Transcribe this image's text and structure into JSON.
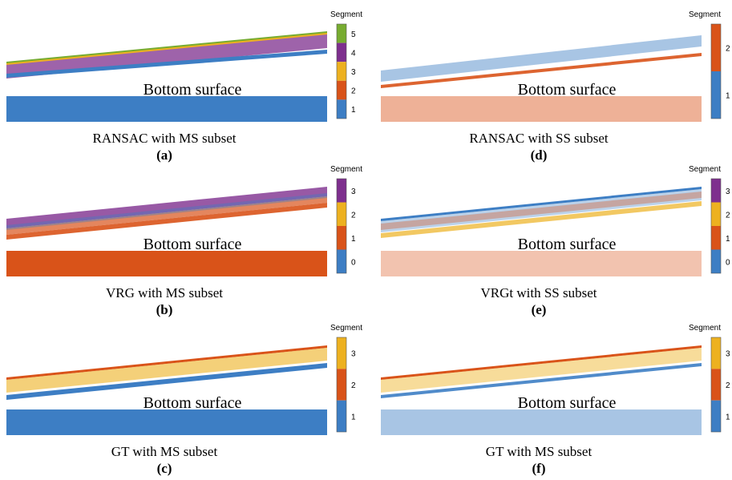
{
  "panels": [
    {
      "caption": "RANSAC with MS subset",
      "label": "(a)",
      "surface": "Bottom surface",
      "colorbar": {
        "title": "Segment",
        "segments": [
          {
            "label": "5",
            "color": "#77ac30"
          },
          {
            "label": "4",
            "color": "#7e2f8e"
          },
          {
            "label": "3",
            "color": "#edb120"
          },
          {
            "label": "2",
            "color": "#d95319"
          },
          {
            "label": "1",
            "color": "#3d7ec4"
          }
        ]
      }
    },
    {
      "caption": "VRG with MS subset",
      "label": "(b)",
      "surface": "Bottom surface",
      "colorbar": {
        "title": "Segment",
        "segments": [
          {
            "label": "3",
            "color": "#7e2f8e"
          },
          {
            "label": "2",
            "color": "#edb120"
          },
          {
            "label": "1",
            "color": "#d95319"
          },
          {
            "label": "0",
            "color": "#3d7ec4"
          }
        ]
      }
    },
    {
      "caption": "GT with MS subset",
      "label": "(c)",
      "surface": "Bottom surface",
      "colorbar": {
        "title": "Segment",
        "segments": [
          {
            "label": "3",
            "color": "#edb120"
          },
          {
            "label": "2",
            "color": "#d95319"
          },
          {
            "label": "1",
            "color": "#3d7ec4"
          }
        ]
      }
    },
    {
      "caption": "RANSAC with SS subset",
      "label": "(d)",
      "surface": "Bottom surface",
      "colorbar": {
        "title": "Segment",
        "segments": [
          {
            "label": "2",
            "color": "#d95319"
          },
          {
            "label": "1",
            "color": "#3d7ec4"
          }
        ]
      }
    },
    {
      "caption": "VRGt with SS subset",
      "label": "(e)",
      "surface": "Bottom surface",
      "colorbar": {
        "title": "Segment",
        "segments": [
          {
            "label": "3",
            "color": "#7e2f8e"
          },
          {
            "label": "2",
            "color": "#edb120"
          },
          {
            "label": "1",
            "color": "#d95319"
          },
          {
            "label": "0",
            "color": "#3d7ec4"
          }
        ]
      }
    },
    {
      "caption": "GT with MS subset",
      "label": "(f)",
      "surface": "Bottom surface",
      "colorbar": {
        "title": "Segment",
        "segments": [
          {
            "label": "3",
            "color": "#edb120"
          },
          {
            "label": "2",
            "color": "#d95319"
          },
          {
            "label": "1",
            "color": "#3d7ec4"
          }
        ]
      }
    }
  ]
}
